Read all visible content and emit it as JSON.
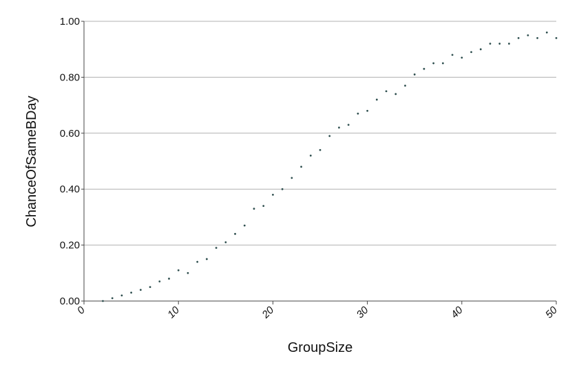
{
  "chart_data": {
    "type": "scatter",
    "x_label": "GroupSize",
    "y_label": "ChanceOfSameBDay",
    "x": [
      2,
      3,
      4,
      5,
      6,
      7,
      8,
      9,
      10,
      11,
      12,
      13,
      14,
      15,
      16,
      17,
      18,
      19,
      20,
      21,
      22,
      23,
      24,
      25,
      26,
      27,
      28,
      29,
      30,
      31,
      32,
      33,
      34,
      35,
      36,
      37,
      38,
      39,
      40,
      41,
      42,
      43,
      44,
      45,
      46,
      47,
      48,
      49,
      50
    ],
    "values": [
      0.0,
      0.01,
      0.02,
      0.03,
      0.04,
      0.05,
      0.07,
      0.08,
      0.11,
      0.1,
      0.14,
      0.15,
      0.19,
      0.21,
      0.24,
      0.27,
      0.33,
      0.34,
      0.38,
      0.4,
      0.44,
      0.48,
      0.52,
      0.54,
      0.59,
      0.62,
      0.63,
      0.67,
      0.68,
      0.72,
      0.75,
      0.74,
      0.77,
      0.81,
      0.83,
      0.85,
      0.85,
      0.88,
      0.87,
      0.89,
      0.9,
      0.92,
      0.92,
      0.92,
      0.94,
      0.95,
      0.94,
      0.96,
      0.94
    ],
    "color": "#2f4f4f",
    "xlim": [
      0,
      50
    ],
    "xticks": [
      0,
      10,
      20,
      30,
      40,
      50
    ],
    "ylim": [
      0,
      1
    ],
    "yticks": [
      {
        "value": 0,
        "label": "0.00"
      },
      {
        "value": 0.2,
        "label": "0.20"
      },
      {
        "value": 0.4,
        "label": "0.40"
      },
      {
        "value": 0.6,
        "label": "0.60"
      },
      {
        "value": 0.8,
        "label": "0.80"
      },
      {
        "value": 1,
        "label": "1.00"
      }
    ],
    "grid": true
  }
}
